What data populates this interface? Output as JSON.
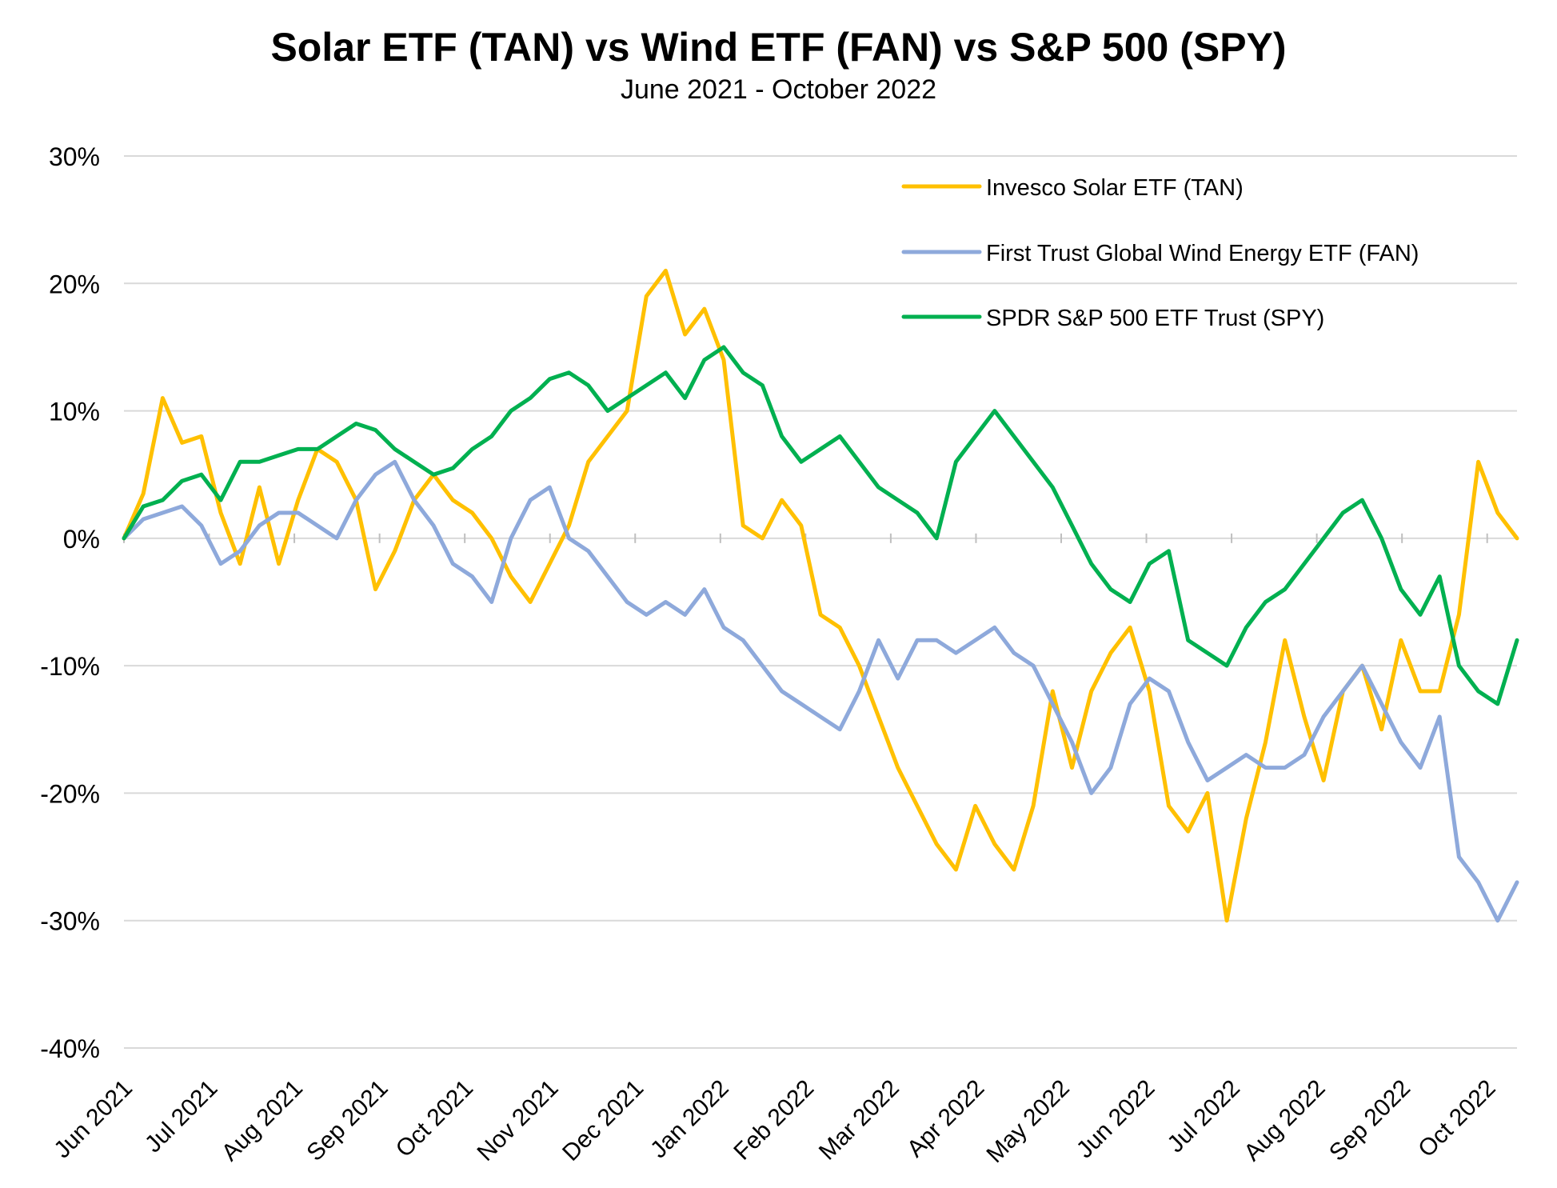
{
  "title": "Solar ETF (TAN) vs Wind ETF (FAN) vs S&P 500 (SPY)",
  "subtitle": "June 2021 - October 2022",
  "chart_data": {
    "type": "line",
    "title": "Solar ETF (TAN) vs Wind ETF (FAN) vs S&P 500 (SPY)",
    "subtitle": "June 2021 - October 2022",
    "ylim": [
      -40,
      30
    ],
    "yticks": [
      30,
      20,
      10,
      0,
      -10,
      -20,
      -30,
      -40
    ],
    "yticklabels": [
      "30%",
      "20%",
      "10%",
      "0%",
      "-10%",
      "-20%",
      "-30%",
      "-40%"
    ],
    "xticklabels": [
      "Jun 2021",
      "Jul 2021",
      "Aug 2021",
      "Sep 2021",
      "Oct 2021",
      "Nov 2021",
      "Dec 2021",
      "Jan 2022",
      "Feb 2022",
      "Mar 2022",
      "Apr 2022",
      "May 2022",
      "Jun 2022",
      "Jul 2022",
      "Aug 2022",
      "Sep 2022",
      "Oct 2022"
    ],
    "grid": true,
    "legend_position": "top-right",
    "x": [
      "2021-06-01",
      "2021-06-08",
      "2021-06-15",
      "2021-06-22",
      "2021-06-29",
      "2021-07-06",
      "2021-07-13",
      "2021-07-20",
      "2021-07-27",
      "2021-08-03",
      "2021-08-10",
      "2021-08-17",
      "2021-08-24",
      "2021-08-31",
      "2021-09-07",
      "2021-09-14",
      "2021-09-21",
      "2021-09-28",
      "2021-10-05",
      "2021-10-12",
      "2021-10-19",
      "2021-10-26",
      "2021-11-02",
      "2021-11-09",
      "2021-11-16",
      "2021-11-23",
      "2021-11-30",
      "2021-12-07",
      "2021-12-14",
      "2021-12-21",
      "2021-12-28",
      "2022-01-04",
      "2022-01-11",
      "2022-01-18",
      "2022-01-25",
      "2022-02-01",
      "2022-02-08",
      "2022-02-15",
      "2022-02-22",
      "2022-03-01",
      "2022-03-08",
      "2022-03-15",
      "2022-03-22",
      "2022-03-29",
      "2022-04-05",
      "2022-04-12",
      "2022-04-19",
      "2022-04-26",
      "2022-05-03",
      "2022-05-10",
      "2022-05-17",
      "2022-05-24",
      "2022-05-31",
      "2022-06-07",
      "2022-06-14",
      "2022-06-21",
      "2022-06-28",
      "2022-07-05",
      "2022-07-12",
      "2022-07-19",
      "2022-07-26",
      "2022-08-02",
      "2022-08-09",
      "2022-08-16",
      "2022-08-23",
      "2022-08-30",
      "2022-09-06",
      "2022-09-13",
      "2022-09-20",
      "2022-09-27",
      "2022-10-04",
      "2022-10-11",
      "2022-10-18"
    ],
    "series": [
      {
        "name": "Invesco Solar ETF (TAN)",
        "color": "#FFC000",
        "values": [
          0,
          3.5,
          11,
          7.5,
          8,
          2,
          -2,
          4,
          -2,
          3,
          7,
          6,
          3,
          -4,
          -1,
          3,
          5,
          3,
          2,
          0,
          -3,
          -5,
          -2,
          1,
          6,
          8,
          10,
          19,
          21,
          16,
          18,
          14,
          1,
          0,
          3,
          1,
          -6,
          -7,
          -10,
          -14,
          -18,
          -21,
          -24,
          -26,
          -21,
          -24,
          -26,
          -21,
          -12,
          -18,
          -12,
          -9,
          -7,
          -12,
          -21,
          -23,
          -20,
          -30,
          -22,
          -16,
          -8,
          -14,
          -19,
          -12,
          -10,
          -15,
          -8,
          -12,
          -12,
          -6,
          6,
          2,
          0
        ]
      },
      {
        "name": "First Trust Global Wind Energy ETF (FAN)",
        "color": "#8EA9DB",
        "values": [
          0,
          1.5,
          2,
          2.5,
          1,
          -2,
          -1,
          1,
          2,
          2,
          1,
          0,
          3,
          5,
          6,
          3,
          1,
          -2,
          -3,
          -5,
          0,
          3,
          4,
          0,
          -1,
          -3,
          -5,
          -6,
          -5,
          -6,
          -4,
          -7,
          -8,
          -10,
          -12,
          -13,
          -14,
          -15,
          -12,
          -8,
          -11,
          -8,
          -8,
          -9,
          -8,
          -7,
          -9,
          -10,
          -13,
          -16,
          -20,
          -18,
          -13,
          -11,
          -12,
          -16,
          -19,
          -18,
          -17,
          -18,
          -18,
          -17,
          -14,
          -12,
          -10,
          -13,
          -16,
          -18,
          -14,
          -25,
          -27,
          -30,
          -27
        ]
      },
      {
        "name": "SPDR S&P 500 ETF Trust (SPY)",
        "color": "#00B050",
        "values": [
          0,
          2.5,
          3,
          4.5,
          5,
          3,
          6,
          6,
          6.5,
          7,
          7,
          8,
          9,
          8.5,
          7,
          6,
          5,
          5.5,
          7,
          8,
          10,
          11,
          12.5,
          13,
          12,
          10,
          11,
          12,
          13,
          11,
          14,
          15,
          13,
          12,
          8,
          6,
          7,
          8,
          6,
          4,
          3,
          2,
          0,
          6,
          8,
          10,
          8,
          6,
          4,
          1,
          -2,
          -4,
          -5,
          -2,
          -1,
          -8,
          -9,
          -10,
          -7,
          -5,
          -4,
          -2,
          0,
          2,
          3,
          0,
          -4,
          -6,
          -3,
          -10,
          -12,
          -13,
          -8
        ]
      }
    ]
  }
}
